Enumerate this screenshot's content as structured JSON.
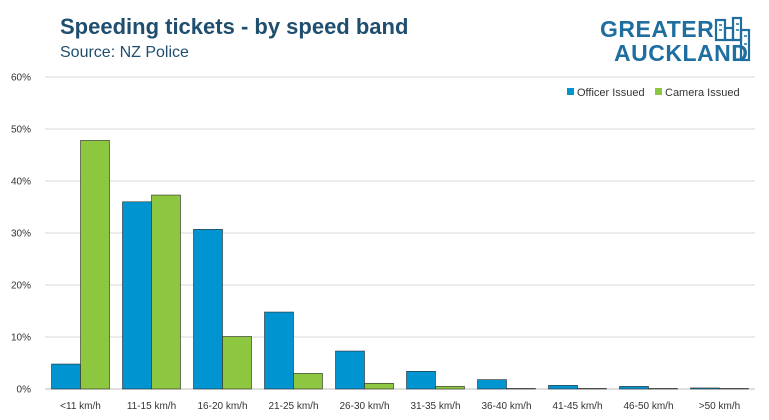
{
  "header": {
    "title": "Speeding tickets - by speed band",
    "subtitle": "Source: NZ Police"
  },
  "logo": {
    "line1": "GREATER",
    "line2": "AUCKLAND",
    "color": "#1f6ea0"
  },
  "chart_data": {
    "type": "bar",
    "title": "Speeding tickets - by speed band",
    "subtitle": "Source: NZ Police",
    "categories": [
      "<11 km/h",
      "11-15 km/h",
      "16-20 km/h",
      "21-25 km/h",
      "26-30 km/h",
      "31-35 km/h",
      "36-40 km/h",
      "41-45 km/h",
      "46-50 km/h",
      ">50 km/h"
    ],
    "series": [
      {
        "name": "Officer Issued",
        "color": "#0094d0",
        "values": [
          4.8,
          36.0,
          30.7,
          14.8,
          7.3,
          3.4,
          1.8,
          0.7,
          0.5,
          0.2
        ]
      },
      {
        "name": "Camera Issued",
        "color": "#8dc63f",
        "values": [
          47.8,
          37.3,
          10.1,
          3.0,
          1.1,
          0.5,
          0.1,
          0.1,
          0.1,
          0.1
        ]
      }
    ],
    "yticks": [
      "0%",
      "10%",
      "20%",
      "30%",
      "40%",
      "50%",
      "60%"
    ],
    "ylim": [
      0,
      60
    ],
    "grid": true,
    "legend": "top-right"
  }
}
